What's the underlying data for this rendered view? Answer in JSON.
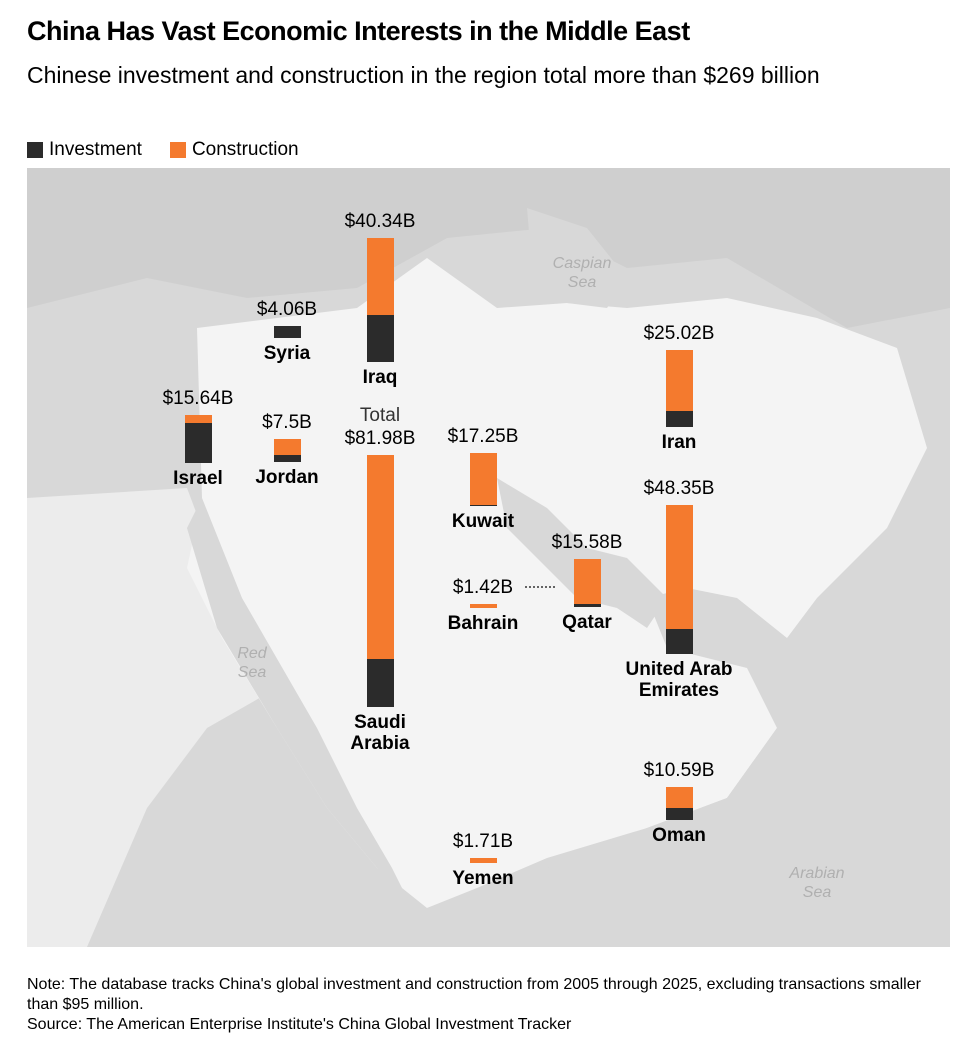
{
  "chart_data": {
    "type": "stacked-bar-map",
    "title": "China Has Vast Economic Interests in the Middle East",
    "subtitle": "Chinese investment and construction in the region total more than $269 billion",
    "categories": [
      "Syria",
      "Iraq",
      "Israel",
      "Jordan",
      "Saudi Arabia",
      "Kuwait",
      "Bahrain",
      "Qatar",
      "Iran",
      "United Arab Emirates",
      "Oman",
      "Yemen"
    ],
    "series": [
      {
        "name": "Investment",
        "color": "#2b2b2b",
        "values": [
          4.06,
          15.3,
          13.0,
          2.3,
          15.6,
          0.4,
          0,
          1.0,
          5.2,
          8.1,
          3.9,
          0
        ]
      },
      {
        "name": "Construction",
        "color": "#f47a2e",
        "values": [
          0,
          25.04,
          2.64,
          5.2,
          66.38,
          16.85,
          1.42,
          14.58,
          19.82,
          40.25,
          6.69,
          1.71
        ]
      }
    ],
    "totals": {
      "values": [
        4.06,
        40.34,
        15.64,
        7.5,
        81.98,
        17.25,
        1.42,
        15.58,
        25.02,
        48.35,
        10.59,
        1.71
      ],
      "value_labels": [
        "$4.06B",
        "$40.34B",
        "$15.64B",
        "$7.5B",
        "$81.98B",
        "$17.25B",
        "$1.42B",
        "$15.58B",
        "$25.02B",
        "$48.35B",
        "$10.59B",
        "$1.71B"
      ]
    },
    "annotation": "Total",
    "seas": [
      "Caspian Sea",
      "Red Sea",
      "Arabian Sea"
    ],
    "note": "Note: The database tracks China's global investment and construction from 2005 through 2025, excluding transactions smaller than $95 million.",
    "source": "Source: The American Enterprise Institute's China Global Investment Tracker"
  }
}
